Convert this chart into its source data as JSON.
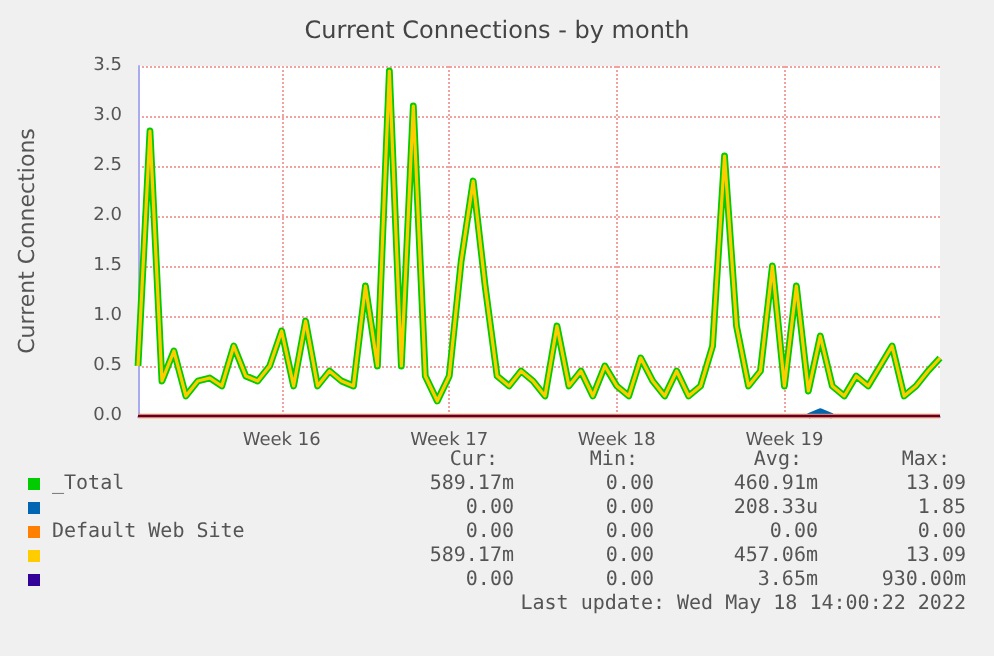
{
  "chart_data": {
    "type": "line",
    "title": "Current Connections - by month",
    "ylabel": "Current Connections",
    "categories": [
      null,
      null,
      null,
      null,
      null,
      null,
      null,
      null,
      null,
      null,
      null,
      null,
      "Week 16",
      null,
      null,
      null,
      null,
      null,
      null,
      null,
      null,
      null,
      null,
      null,
      null,
      null,
      "Week 17",
      null,
      null,
      null,
      null,
      null,
      null,
      null,
      null,
      null,
      null,
      null,
      null,
      null,
      "Week 18",
      null,
      null,
      null,
      null,
      null,
      null,
      null,
      null,
      null,
      null,
      null,
      null,
      null,
      "Week 19",
      null,
      null,
      null,
      null,
      null,
      null,
      null,
      null,
      null,
      null,
      null,
      null,
      null
    ],
    "ylim": [
      0,
      3.5
    ],
    "yticks": [
      {
        "value": 0,
        "label": "0.0"
      },
      {
        "value": 0.5,
        "label": "0.5"
      },
      {
        "value": 1,
        "label": "1.0"
      },
      {
        "value": 1.5,
        "label": "1.5"
      },
      {
        "value": 2,
        "label": "2.0"
      },
      {
        "value": 2.5,
        "label": "2.5"
      },
      {
        "value": 3,
        "label": "3.0"
      },
      {
        "value": 3.5,
        "label": "3.5"
      }
    ],
    "grid": true,
    "legend": "bottom left",
    "series": [
      {
        "name": "_Total",
        "color": "#00cc00",
        "values": [
          0.5,
          2.85,
          0.35,
          0.65,
          0.2,
          0.35,
          0.38,
          0.3,
          0.7,
          0.4,
          0.35,
          0.5,
          0.85,
          0.3,
          0.95,
          0.3,
          0.45,
          0.35,
          0.3,
          1.3,
          0.5,
          3.45,
          0.5,
          3.1,
          0.4,
          0.15,
          0.4,
          1.55,
          2.35,
          1.3,
          0.4,
          0.3,
          0.45,
          0.35,
          0.2,
          0.9,
          0.3,
          0.45,
          0.2,
          0.5,
          0.3,
          0.2,
          0.58,
          0.35,
          0.2,
          0.45,
          0.2,
          0.3,
          0.7,
          2.6,
          0.9,
          0.3,
          0.45,
          1.5,
          0.3,
          1.3,
          0.25,
          0.8,
          0.3,
          0.2,
          0.4,
          0.3,
          0.5,
          0.7,
          0.2,
          0.3,
          0.45,
          0.58
        ]
      },
      {
        "color": "#0066b3",
        "values": [
          null,
          null,
          null,
          null,
          null,
          null,
          null,
          null,
          null,
          null,
          null,
          null,
          null,
          null,
          null,
          null,
          null,
          null,
          null,
          null,
          null,
          null,
          null,
          null,
          null,
          null,
          null,
          null,
          null,
          null,
          null,
          null,
          null,
          null,
          null,
          null,
          null,
          null,
          null,
          null,
          null,
          null,
          null,
          null,
          null,
          null,
          null,
          null,
          null,
          null,
          null,
          null,
          null,
          null,
          null,
          null,
          0,
          0.05,
          0,
          null,
          null,
          null,
          null,
          null,
          null,
          null,
          null,
          null
        ]
      },
      {
        "name": "Default Web Site",
        "color": "#ff8000",
        "values": [
          0,
          0,
          0,
          0,
          0,
          0,
          0,
          0,
          0,
          0,
          0,
          0,
          0,
          0,
          0,
          0,
          0,
          0,
          0,
          0,
          0,
          0,
          0,
          0,
          0,
          0,
          0,
          0,
          0,
          0,
          0,
          0,
          0,
          0,
          0,
          0,
          0,
          0,
          0,
          0,
          0,
          0,
          0,
          0,
          0,
          0,
          0,
          0,
          0,
          0,
          0,
          0,
          0,
          0,
          0,
          0,
          0,
          0,
          0,
          0,
          0,
          0,
          0,
          0,
          0,
          0,
          0,
          0
        ]
      },
      {
        "color": "#ffcc00",
        "values": [
          0.5,
          2.85,
          0.35,
          0.65,
          0.2,
          0.35,
          0.38,
          0.3,
          0.7,
          0.4,
          0.35,
          0.5,
          0.85,
          0.3,
          0.95,
          0.3,
          0.45,
          0.35,
          0.3,
          1.3,
          0.5,
          3.45,
          0.5,
          3.1,
          0.4,
          0.15,
          0.4,
          1.55,
          2.35,
          1.3,
          0.4,
          0.3,
          0.45,
          0.35,
          0.2,
          0.9,
          0.3,
          0.45,
          0.2,
          0.5,
          0.3,
          0.2,
          0.58,
          0.35,
          0.2,
          0.45,
          0.2,
          0.3,
          0.7,
          2.6,
          0.9,
          0.3,
          0.45,
          1.5,
          0.3,
          1.3,
          0.25,
          0.8,
          0.3,
          0.2,
          0.4,
          0.3,
          0.5,
          0.7,
          0.2,
          0.3,
          0.45,
          0.58
        ]
      },
      {
        "color": "#330099",
        "values": [
          0,
          0,
          0,
          0,
          0,
          0,
          0,
          0,
          0,
          0,
          0,
          0,
          0,
          0,
          0,
          0,
          0,
          0,
          0,
          0,
          0,
          0,
          0,
          0,
          0,
          0,
          0,
          0,
          0,
          0,
          0,
          0,
          0,
          0,
          0,
          0,
          0,
          0,
          0,
          0,
          0,
          0,
          0,
          0,
          0,
          0,
          0,
          0,
          0,
          0,
          0,
          0,
          0,
          0,
          0,
          0,
          0,
          0,
          0,
          0,
          0,
          0,
          0,
          0,
          0,
          0,
          0,
          0
        ]
      }
    ],
    "annotations": [
      "Cur:",
      "Min:",
      "Avg:",
      "Max:",
      "589.17m",
      "0.00",
      "460.91m",
      "13.09",
      "0.00",
      "0.00",
      "208.33u",
      "1.85",
      "0.00",
      "0.00",
      "0.00",
      "0.00",
      "589.17m",
      "0.00",
      "457.06m",
      "13.09",
      "0.00",
      "0.00",
      "3.65m",
      "930.00m",
      "Last update: Wed May 18 14:00:22 2022"
    ]
  }
}
